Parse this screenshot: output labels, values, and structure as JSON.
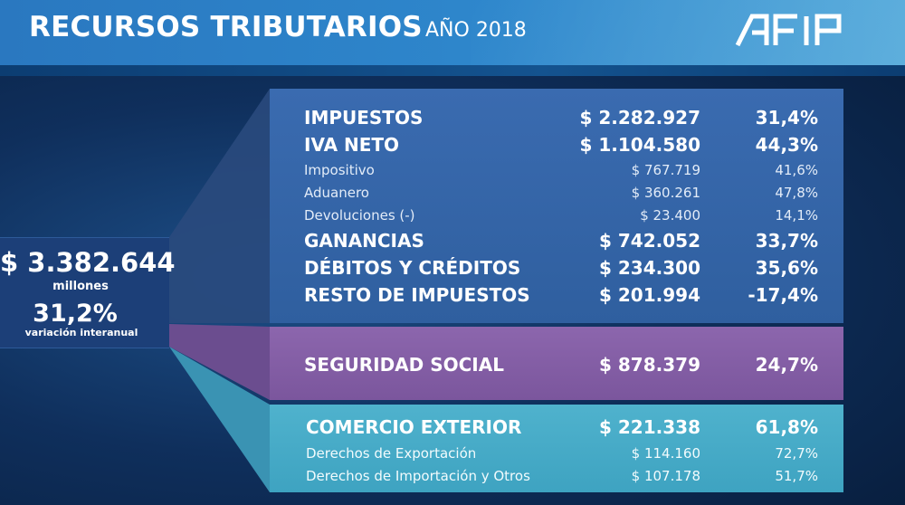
{
  "header": {
    "title": "RECURSOS TRIBUTARIOS",
    "year": "AÑO 2018",
    "logo": "AFIP"
  },
  "total": {
    "amount": "$ 3.382.644",
    "unit": "millones",
    "variation": "31,2%",
    "variation_label": "variación interanual"
  },
  "impuestos": {
    "rows": [
      {
        "label": "IMPUESTOS",
        "amount": "$ 2.282.927",
        "pct": "31,4%"
      },
      {
        "label": "IVA NETO",
        "amount": "$ 1.104.580",
        "pct": "44,3%"
      },
      {
        "label": "Impositivo",
        "amount": "$ 767.719",
        "pct": "41,6%"
      },
      {
        "label": "Aduanero",
        "amount": "$ 360.261",
        "pct": "47,8%"
      },
      {
        "label": "Devoluciones (-)",
        "amount": "$ 23.400",
        "pct": "14,1%"
      },
      {
        "label": "GANANCIAS",
        "amount": "$ 742.052",
        "pct": "33,7%"
      },
      {
        "label": "DÉBITOS Y CRÉDITOS",
        "amount": "$ 234.300",
        "pct": "35,6%"
      },
      {
        "label": "RESTO DE IMPUESTOS",
        "amount": "$ 201.994",
        "pct": "-17,4%"
      }
    ]
  },
  "seguridad_social": {
    "label": "SEGURIDAD SOCIAL",
    "amount": "$ 878.379",
    "pct": "24,7%"
  },
  "comercio_exterior": {
    "rows": [
      {
        "label": "COMERCIO EXTERIOR",
        "amount": "$ 221.338",
        "pct": "61,8%"
      },
      {
        "label": "Derechos de Exportación",
        "amount": "$ 114.160",
        "pct": "72,7%"
      },
      {
        "label": "Derechos de Importación y Otros",
        "amount": "$ 107.178",
        "pct": "51,7%"
      }
    ]
  },
  "colors": {
    "impuestos_panel": "#3a6bb0",
    "seguridad_social_panel": "#8c66ad",
    "comercio_exterior_panel": "#4fb2cd",
    "header": "#2e87cc"
  }
}
